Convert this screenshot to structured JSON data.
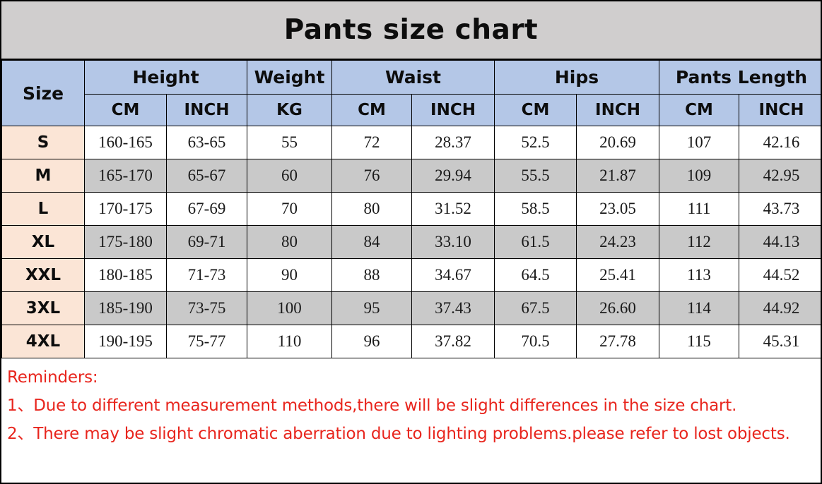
{
  "title": "Pants size chart",
  "chart_data": {
    "type": "table",
    "title": "Pants size chart",
    "header_groups": [
      {
        "label": "Size",
        "span": 1
      },
      {
        "label": "Height",
        "span": 2
      },
      {
        "label": "Weight",
        "span": 1
      },
      {
        "label": "Waist",
        "span": 2
      },
      {
        "label": "Hips",
        "span": 2
      },
      {
        "label": "Pants Length",
        "span": 2
      }
    ],
    "sub_headers": [
      "CM",
      "INCH",
      "KG",
      "CM",
      "INCH",
      "CM",
      "INCH",
      "CM",
      "INCH"
    ],
    "rows": [
      {
        "size": "S",
        "values": [
          "160-165",
          "63-65",
          "55",
          "72",
          "28.37",
          "52.5",
          "20.69",
          "107",
          "42.16"
        ]
      },
      {
        "size": "M",
        "values": [
          "165-170",
          "65-67",
          "60",
          "76",
          "29.94",
          "55.5",
          "21.87",
          "109",
          "42.95"
        ]
      },
      {
        "size": "L",
        "values": [
          "170-175",
          "67-69",
          "70",
          "80",
          "31.52",
          "58.5",
          "23.05",
          "111",
          "43.73"
        ]
      },
      {
        "size": "XL",
        "values": [
          "175-180",
          "69-71",
          "80",
          "84",
          "33.10",
          "61.5",
          "24.23",
          "112",
          "44.13"
        ]
      },
      {
        "size": "XXL",
        "values": [
          "180-185",
          "71-73",
          "90",
          "88",
          "34.67",
          "64.5",
          "25.41",
          "113",
          "44.52"
        ]
      },
      {
        "size": "3XL",
        "values": [
          "185-190",
          "73-75",
          "100",
          "95",
          "37.43",
          "67.5",
          "26.60",
          "114",
          "44.92"
        ]
      },
      {
        "size": "4XL",
        "values": [
          "190-195",
          "75-77",
          "110",
          "96",
          "37.82",
          "70.5",
          "27.78",
          "115",
          "45.31"
        ]
      }
    ]
  },
  "reminders": {
    "heading": "Reminders:",
    "items": [
      "1、Due to different measurement methods,there will be slight differences in the size chart.",
      "2、There may be slight chromatic aberration due to lighting problems.please refer to lost objects."
    ]
  },
  "colors": {
    "title_background": "#d0cece",
    "header_background": "#b4c7e7",
    "size_column_background": "#fbe5d6",
    "shaded_row_background": "#c9c9c9",
    "reminder_text": "#e8251d",
    "border": "#000000"
  }
}
